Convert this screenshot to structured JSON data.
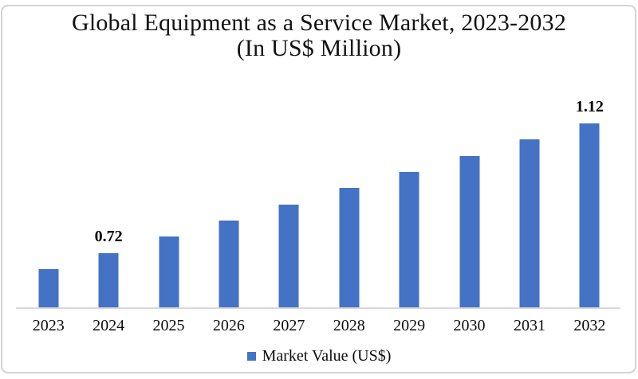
{
  "title": {
    "line1": "Global Equipment as a Service Market, 2023-2032",
    "line2": "(In US$ Million)"
  },
  "legend": {
    "label": "Market Value (US$)"
  },
  "colors": {
    "bar": "#4472C4",
    "axis_line": "#D9D9D9",
    "frame_border": "#D4D2D2",
    "background": "#FFFFFF",
    "text": "#000000"
  },
  "chart_data": {
    "type": "bar",
    "title": "Global Equipment as a Service Market, 2023-2032 (In US$ Million)",
    "categories": [
      "2023",
      "2024",
      "2025",
      "2026",
      "2027",
      "2028",
      "2029",
      "2030",
      "2031",
      "2032"
    ],
    "series": [
      {
        "name": "Market Value (US$)",
        "values": [
          0.67,
          0.72,
          0.77,
          0.82,
          0.87,
          0.92,
          0.97,
          1.02,
          1.07,
          1.12
        ]
      }
    ],
    "data_labels": [
      "",
      "0.72",
      "",
      "",
      "",
      "",
      "",
      "",
      "",
      "1.12"
    ],
    "xlabel": "",
    "ylabel": "",
    "ylim": [
      0.55,
      1.25
    ],
    "y_axis_visible": false,
    "gridlines": false,
    "legend_position": "bottom"
  }
}
